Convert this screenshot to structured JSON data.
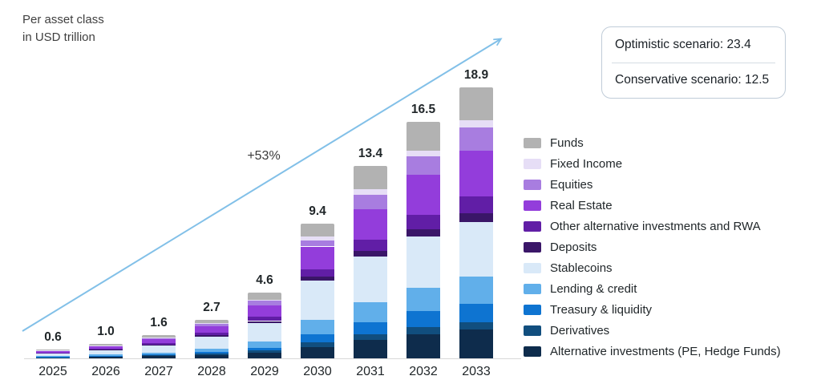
{
  "title": {
    "line1": "Per asset class",
    "line2": "in USD trillion"
  },
  "scenario_box": {
    "items": [
      {
        "label": "Optimistic scenario:",
        "value": "23.4"
      },
      {
        "label": "Conservative scenario:",
        "value": "12.5"
      }
    ]
  },
  "chart_data": {
    "type": "bar",
    "stacked": true,
    "title": "Per asset class in USD trillion",
    "xlabel": "",
    "ylabel": "USD trillion",
    "annotation_label": "+53%",
    "arrow_color": "#82c0e8",
    "grid": false,
    "legend_position": "right",
    "categories": [
      "2025",
      "2026",
      "2027",
      "2028",
      "2029",
      "2030",
      "2031",
      "2032",
      "2033"
    ],
    "totals": [
      0.6,
      1.0,
      1.6,
      2.7,
      4.6,
      9.4,
      13.4,
      16.5,
      18.9
    ],
    "series": [
      {
        "name": "Alternative investments (PE, Hedge Funds)",
        "color": "#0e2c4c",
        "values": [
          0.06,
          0.1,
          0.15,
          0.25,
          0.4,
          0.8,
          1.3,
          1.7,
          2.0
        ]
      },
      {
        "name": "Derivatives",
        "color": "#114e7e",
        "values": [
          0.02,
          0.04,
          0.06,
          0.1,
          0.15,
          0.3,
          0.4,
          0.5,
          0.5
        ]
      },
      {
        "name": "Treasury & liquidity",
        "color": "#0e74d1",
        "values": [
          0.03,
          0.05,
          0.08,
          0.12,
          0.2,
          0.6,
          0.8,
          1.1,
          1.3
        ]
      },
      {
        "name": "Lending & credit",
        "color": "#61afea",
        "values": [
          0.05,
          0.08,
          0.12,
          0.2,
          0.4,
          1.0,
          1.4,
          1.6,
          1.9
        ]
      },
      {
        "name": "Stablecoins",
        "color": "#d9e9f8",
        "values": [
          0.19,
          0.31,
          0.5,
          0.85,
          1.3,
          2.7,
          3.2,
          3.6,
          3.8
        ]
      },
      {
        "name": "Deposits",
        "color": "#3a1668",
        "values": [
          0.02,
          0.03,
          0.05,
          0.08,
          0.15,
          0.3,
          0.4,
          0.5,
          0.6
        ]
      },
      {
        "name": "Other alternative investments and RWA",
        "color": "#611ea6",
        "values": [
          0.04,
          0.06,
          0.1,
          0.18,
          0.3,
          0.5,
          0.8,
          1.0,
          1.2
        ]
      },
      {
        "name": "Real Estate",
        "color": "#933ddb",
        "values": [
          0.1,
          0.17,
          0.27,
          0.45,
          0.8,
          1.6,
          2.1,
          2.8,
          3.2
        ]
      },
      {
        "name": "Equities",
        "color": "#a87de0",
        "values": [
          0.03,
          0.06,
          0.09,
          0.15,
          0.3,
          0.4,
          1.0,
          1.3,
          1.6
        ]
      },
      {
        "name": "Fixed Income",
        "color": "#e6def6",
        "values": [
          0.01,
          0.02,
          0.04,
          0.07,
          0.1,
          0.3,
          0.4,
          0.4,
          0.5
        ]
      },
      {
        "name": "Funds",
        "color": "#b2b2b2",
        "values": [
          0.05,
          0.08,
          0.14,
          0.25,
          0.5,
          0.9,
          1.6,
          2.0,
          2.3
        ]
      }
    ]
  }
}
